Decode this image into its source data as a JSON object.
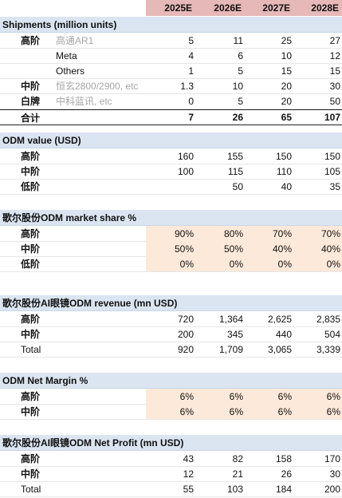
{
  "years": [
    "2025E",
    "2026E",
    "2027E",
    "2028E"
  ],
  "shipments": {
    "title": "Shipments (million units)",
    "rows": [
      {
        "tier": "高阶",
        "label": "高通AR1",
        "values": [
          "5",
          "11",
          "25",
          "27"
        ]
      },
      {
        "tier": "",
        "label": "Meta",
        "values": [
          "4",
          "6",
          "10",
          "12"
        ]
      },
      {
        "tier": "",
        "label": "Others",
        "values": [
          "1",
          "5",
          "15",
          "15"
        ]
      },
      {
        "tier": "中阶",
        "label": "恒玄2800/2900, etc",
        "values": [
          "1.3",
          "10",
          "20",
          "30"
        ]
      },
      {
        "tier": "白牌",
        "label": "中科蓝讯, etc",
        "values": [
          "0",
          "5",
          "20",
          "50"
        ]
      }
    ],
    "total": {
      "tier": "合计",
      "values": [
        "7",
        "26",
        "65",
        "107"
      ]
    }
  },
  "odm_value": {
    "title": "ODM value (USD)",
    "rows": [
      {
        "tier": "高阶",
        "values": [
          "160",
          "155",
          "150",
          "150"
        ]
      },
      {
        "tier": "中阶",
        "values": [
          "100",
          "115",
          "110",
          "105"
        ]
      },
      {
        "tier": "低阶",
        "values": [
          "",
          "50",
          "40",
          "35"
        ]
      }
    ]
  },
  "market_share": {
    "title": "歌尔股份ODM market share %",
    "rows": [
      {
        "tier": "高阶",
        "values": [
          "90%",
          "80%",
          "70%",
          "70%"
        ]
      },
      {
        "tier": "中阶",
        "values": [
          "50%",
          "50%",
          "40%",
          "40%"
        ]
      },
      {
        "tier": "低阶",
        "values": [
          "0%",
          "0%",
          "0%",
          "0%"
        ]
      }
    ]
  },
  "revenue": {
    "title": "歌尔股份AI眼镜ODM revenue (mn USD)",
    "rows": [
      {
        "tier": "高阶",
        "values": [
          "720",
          "1,364",
          "2,625",
          "2,835"
        ]
      },
      {
        "tier": "中阶",
        "values": [
          "200",
          "345",
          "440",
          "504"
        ]
      }
    ],
    "total": {
      "tier": "Total",
      "values": [
        "920",
        "1,709",
        "3,065",
        "3,339"
      ]
    }
  },
  "net_margin": {
    "title": "ODM Net Margin %",
    "rows": [
      {
        "tier": "高阶",
        "values": [
          "6%",
          "6%",
          "6%",
          "6%"
        ]
      },
      {
        "tier": "中阶",
        "values": [
          "6%",
          "6%",
          "6%",
          "6%"
        ]
      }
    ]
  },
  "net_profit": {
    "title": "歌尔股份AI眼镜ODM Net Profit (mn USD)",
    "rows": [
      {
        "tier": "高阶",
        "values": [
          "43",
          "82",
          "158",
          "170"
        ]
      },
      {
        "tier": "中阶",
        "values": [
          "12",
          "21",
          "26",
          "30"
        ]
      }
    ],
    "total": {
      "tier": "Total",
      "values": [
        "55",
        "103",
        "184",
        "200"
      ]
    }
  }
}
